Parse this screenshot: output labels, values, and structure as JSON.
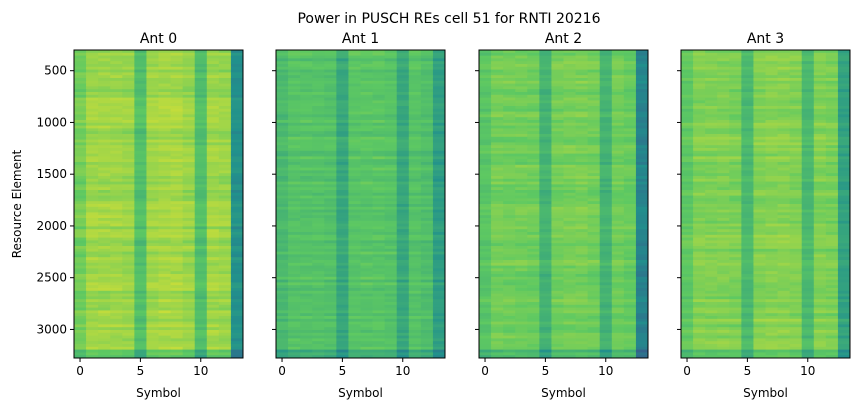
{
  "chart_data": {
    "type": "heatmap",
    "title": "Power in PUSCH REs cell 51 for RNTI 20216",
    "colormap": "viridis",
    "xlabel": "Symbol",
    "ylabel": "Resource Element",
    "x_ticks": [
      0,
      5,
      10
    ],
    "y_ticks": [
      500,
      1000,
      1500,
      2000,
      2500,
      3000
    ],
    "xlim": [
      -0.5,
      13.5
    ],
    "ylim": [
      3276,
      300
    ],
    "symbols": [
      0,
      1,
      2,
      3,
      4,
      5,
      6,
      7,
      8,
      9,
      10,
      11,
      12,
      13
    ],
    "panels": [
      {
        "name": "Ant 0",
        "relative_power_by_symbol": [
          0.78,
          0.85,
          0.85,
          0.85,
          0.84,
          0.7,
          0.85,
          0.86,
          0.86,
          0.84,
          0.7,
          0.85,
          0.84,
          0.5
        ]
      },
      {
        "name": "Ant 1",
        "relative_power_by_symbol": [
          0.68,
          0.72,
          0.72,
          0.72,
          0.71,
          0.6,
          0.73,
          0.73,
          0.73,
          0.72,
          0.6,
          0.72,
          0.7,
          0.56
        ]
      },
      {
        "name": "Ant 2",
        "relative_power_by_symbol": [
          0.73,
          0.78,
          0.78,
          0.78,
          0.77,
          0.65,
          0.78,
          0.79,
          0.79,
          0.78,
          0.65,
          0.78,
          0.76,
          0.45
        ]
      },
      {
        "name": "Ant 3",
        "relative_power_by_symbol": [
          0.75,
          0.81,
          0.81,
          0.81,
          0.8,
          0.68,
          0.81,
          0.82,
          0.82,
          0.81,
          0.68,
          0.81,
          0.8,
          0.58
        ]
      }
    ]
  }
}
